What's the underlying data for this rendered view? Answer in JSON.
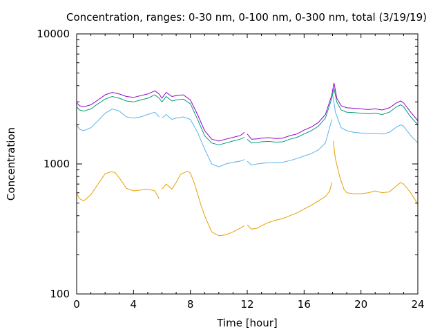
{
  "chart_data": {
    "type": "line",
    "title": "Concentration, ranges: 0-30 nm, 0-100 nm, 0-300 nm, total (3/19/19)",
    "xlabel": "Time [hour]",
    "ylabel": "Concentration",
    "xlim": [
      0,
      24
    ],
    "ylim": [
      100,
      10000
    ],
    "yscale": "log",
    "grid": false,
    "legend": "none",
    "x_ticks": [
      "0",
      "4",
      "8",
      "12",
      "16",
      "20",
      "24"
    ],
    "x_tick_values": [
      0,
      4,
      8,
      12,
      16,
      20,
      24
    ],
    "y_ticks": [
      "100",
      "1000",
      "10000"
    ],
    "y_tick_values": [
      100,
      1000,
      10000
    ],
    "series": [
      {
        "color": "#e69f00",
        "segments": [
          [
            [
              0,
              600
            ],
            [
              0.2,
              540
            ],
            [
              0.5,
              520
            ],
            [
              1,
              580
            ],
            [
              1.5,
              700
            ],
            [
              2,
              840
            ],
            [
              2.4,
              870
            ],
            [
              2.7,
              860
            ],
            [
              3,
              780
            ],
            [
              3.5,
              650
            ],
            [
              4,
              620
            ],
            [
              4.5,
              630
            ],
            [
              5,
              640
            ],
            [
              5.5,
              620
            ],
            [
              5.8,
              540
            ]
          ],
          [
            [
              6,
              640
            ],
            [
              6.3,
              700
            ],
            [
              6.7,
              640
            ],
            [
              7,
              720
            ],
            [
              7.3,
              830
            ],
            [
              7.6,
              860
            ],
            [
              7.8,
              880
            ],
            [
              8,
              850
            ],
            [
              8.3,
              700
            ],
            [
              8.7,
              500
            ],
            [
              9,
              400
            ],
            [
              9.5,
              300
            ],
            [
              10,
              280
            ],
            [
              10.5,
              285
            ],
            [
              11,
              300
            ],
            [
              11.5,
              320
            ],
            [
              11.8,
              335
            ]
          ],
          [
            [
              12,
              340
            ],
            [
              12.3,
              315
            ],
            [
              12.7,
              320
            ],
            [
              13,
              335
            ],
            [
              13.5,
              355
            ],
            [
              14,
              370
            ],
            [
              14.5,
              380
            ],
            [
              15,
              400
            ],
            [
              15.5,
              420
            ],
            [
              16,
              450
            ],
            [
              16.5,
              480
            ],
            [
              17,
              520
            ],
            [
              17.5,
              560
            ],
            [
              17.8,
              620
            ],
            [
              17.95,
              720
            ]
          ],
          [
            [
              18.05,
              1500
            ],
            [
              18.2,
              1100
            ],
            [
              18.5,
              800
            ],
            [
              18.8,
              640
            ],
            [
              19,
              600
            ],
            [
              19.5,
              590
            ],
            [
              20,
              590
            ],
            [
              20.5,
              600
            ],
            [
              21,
              620
            ],
            [
              21.5,
              600
            ],
            [
              22,
              610
            ],
            [
              22.5,
              680
            ],
            [
              22.8,
              720
            ],
            [
              23,
              700
            ],
            [
              23.5,
              600
            ],
            [
              24,
              490
            ]
          ]
        ]
      },
      {
        "color": "#56b4e9",
        "segments": [
          [
            [
              0,
              2000
            ],
            [
              0.2,
              1850
            ],
            [
              0.5,
              1800
            ],
            [
              1,
              1900
            ],
            [
              1.5,
              2150
            ],
            [
              2,
              2450
            ],
            [
              2.5,
              2650
            ],
            [
              3,
              2550
            ],
            [
              3.5,
              2300
            ],
            [
              4,
              2250
            ],
            [
              4.5,
              2300
            ],
            [
              5,
              2400
            ],
            [
              5.5,
              2500
            ],
            [
              5.8,
              2300
            ]
          ],
          [
            [
              6,
              2250
            ],
            [
              6.3,
              2400
            ],
            [
              6.7,
              2200
            ],
            [
              7,
              2250
            ],
            [
              7.5,
              2300
            ],
            [
              8,
              2200
            ],
            [
              8.5,
              1750
            ],
            [
              9,
              1300
            ],
            [
              9.5,
              1000
            ],
            [
              10,
              950
            ],
            [
              10.5,
              1000
            ],
            [
              11,
              1030
            ],
            [
              11.5,
              1050
            ],
            [
              11.8,
              1080
            ]
          ],
          [
            [
              12,
              1050
            ],
            [
              12.3,
              980
            ],
            [
              12.7,
              1000
            ],
            [
              13,
              1010
            ],
            [
              13.5,
              1020
            ],
            [
              14,
              1020
            ],
            [
              14.5,
              1030
            ],
            [
              15,
              1060
            ],
            [
              15.5,
              1100
            ],
            [
              16,
              1150
            ],
            [
              16.5,
              1200
            ],
            [
              17,
              1280
            ],
            [
              17.5,
              1450
            ],
            [
              17.95,
              2200
            ]
          ],
          [
            [
              18.05,
              3300
            ],
            [
              18.2,
              2500
            ],
            [
              18.6,
              1900
            ],
            [
              19,
              1800
            ],
            [
              19.5,
              1750
            ],
            [
              20,
              1730
            ],
            [
              20.5,
              1720
            ],
            [
              21,
              1720
            ],
            [
              21.5,
              1700
            ],
            [
              22,
              1750
            ],
            [
              22.5,
              1920
            ],
            [
              22.8,
              2000
            ],
            [
              23,
              1950
            ],
            [
              23.5,
              1650
            ],
            [
              24,
              1450
            ]
          ]
        ]
      },
      {
        "color": "#009e73",
        "segments": [
          [
            [
              0,
              2750
            ],
            [
              0.2,
              2600
            ],
            [
              0.5,
              2550
            ],
            [
              1,
              2650
            ],
            [
              1.5,
              2900
            ],
            [
              2,
              3150
            ],
            [
              2.5,
              3300
            ],
            [
              3,
              3200
            ],
            [
              3.5,
              3050
            ],
            [
              4,
              3000
            ],
            [
              4.5,
              3100
            ],
            [
              5,
              3200
            ],
            [
              5.5,
              3400
            ],
            [
              5.8,
              3200
            ],
            [
              6,
              3000
            ],
            [
              6.3,
              3300
            ],
            [
              6.7,
              3050
            ],
            [
              7,
              3100
            ],
            [
              7.5,
              3150
            ],
            [
              8,
              2900
            ],
            [
              8.5,
              2200
            ],
            [
              9,
              1650
            ],
            [
              9.5,
              1450
            ],
            [
              10,
              1400
            ],
            [
              10.5,
              1450
            ],
            [
              11,
              1500
            ],
            [
              11.5,
              1550
            ],
            [
              11.8,
              1600
            ]
          ],
          [
            [
              12,
              1550
            ],
            [
              12.3,
              1450
            ],
            [
              12.7,
              1460
            ],
            [
              13,
              1480
            ],
            [
              13.5,
              1490
            ],
            [
              14,
              1470
            ],
            [
              14.5,
              1480
            ],
            [
              15,
              1550
            ],
            [
              15.5,
              1600
            ],
            [
              16,
              1700
            ],
            [
              16.5,
              1800
            ],
            [
              17,
              1950
            ],
            [
              17.5,
              2250
            ],
            [
              17.95,
              3200
            ],
            [
              18.1,
              3800
            ],
            [
              18.3,
              3000
            ],
            [
              18.6,
              2600
            ],
            [
              19,
              2500
            ],
            [
              19.5,
              2480
            ],
            [
              20,
              2450
            ],
            [
              20.5,
              2430
            ],
            [
              21,
              2450
            ],
            [
              21.5,
              2400
            ],
            [
              22,
              2500
            ],
            [
              22.5,
              2750
            ],
            [
              22.8,
              2850
            ],
            [
              23,
              2750
            ],
            [
              23.5,
              2300
            ],
            [
              24,
              2000
            ]
          ]
        ]
      },
      {
        "color": "#9400d3",
        "segments": [
          [
            [
              0,
              2950
            ],
            [
              0.2,
              2800
            ],
            [
              0.5,
              2750
            ],
            [
              1,
              2850
            ],
            [
              1.5,
              3100
            ],
            [
              2,
              3400
            ],
            [
              2.5,
              3550
            ],
            [
              3,
              3450
            ],
            [
              3.5,
              3300
            ],
            [
              4,
              3250
            ],
            [
              4.5,
              3350
            ],
            [
              5,
              3450
            ],
            [
              5.5,
              3650
            ],
            [
              5.8,
              3450
            ],
            [
              6,
              3200
            ],
            [
              6.3,
              3550
            ],
            [
              6.7,
              3300
            ],
            [
              7,
              3350
            ],
            [
              7.5,
              3400
            ],
            [
              8,
              3100
            ],
            [
              8.5,
              2400
            ],
            [
              9,
              1800
            ],
            [
              9.5,
              1550
            ],
            [
              10,
              1500
            ],
            [
              10.5,
              1550
            ],
            [
              11,
              1600
            ],
            [
              11.5,
              1650
            ],
            [
              11.8,
              1750
            ]
          ],
          [
            [
              12,
              1700
            ],
            [
              12.3,
              1550
            ],
            [
              12.7,
              1560
            ],
            [
              13,
              1580
            ],
            [
              13.5,
              1590
            ],
            [
              14,
              1570
            ],
            [
              14.5,
              1580
            ],
            [
              15,
              1650
            ],
            [
              15.5,
              1700
            ],
            [
              16,
              1820
            ],
            [
              16.5,
              1920
            ],
            [
              17,
              2080
            ],
            [
              17.5,
              2400
            ],
            [
              17.95,
              3400
            ],
            [
              18.1,
              4200
            ],
            [
              18.3,
              3200
            ],
            [
              18.6,
              2800
            ],
            [
              19,
              2700
            ],
            [
              19.5,
              2680
            ],
            [
              20,
              2650
            ],
            [
              20.5,
              2620
            ],
            [
              21,
              2650
            ],
            [
              21.5,
              2600
            ],
            [
              22,
              2700
            ],
            [
              22.5,
              2950
            ],
            [
              22.8,
              3050
            ],
            [
              23,
              2950
            ],
            [
              23.5,
              2500
            ],
            [
              24,
              2150
            ]
          ]
        ]
      }
    ]
  }
}
